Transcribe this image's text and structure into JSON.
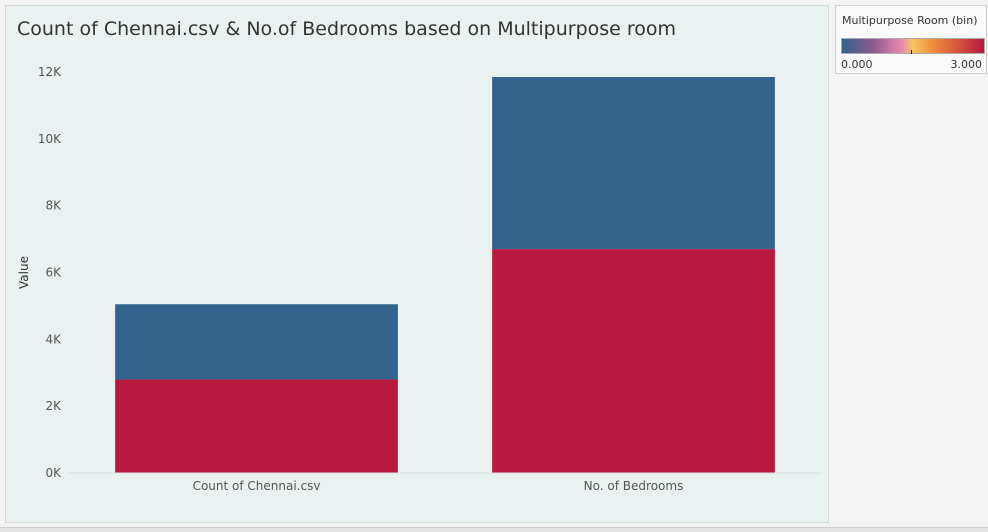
{
  "chart_data": {
    "type": "bar",
    "stacked": true,
    "title": "Count of Chennai.csv & No.of Bedrooms based on Multipurpose room",
    "xlabel": "",
    "ylabel": "Value",
    "categories": [
      "Count of Chennai.csv",
      "No. of Bedrooms"
    ],
    "series": [
      {
        "color": "#b8193f",
        "values": [
          2800,
          6700
        ]
      },
      {
        "color": "#33628d",
        "values": [
          2250,
          5150
        ]
      }
    ],
    "ylim": [
      0,
      12000
    ],
    "yticks": [
      0,
      2000,
      4000,
      6000,
      8000,
      10000,
      12000
    ],
    "ytick_labels": [
      "0K",
      "2K",
      "4K",
      "6K",
      "8K",
      "10K",
      "12K"
    ],
    "grid": false,
    "legend": {
      "title": "Multipurpose Room (bin)",
      "min_label": "0.000",
      "max_label": "3.000",
      "placement": "top-right"
    }
  }
}
